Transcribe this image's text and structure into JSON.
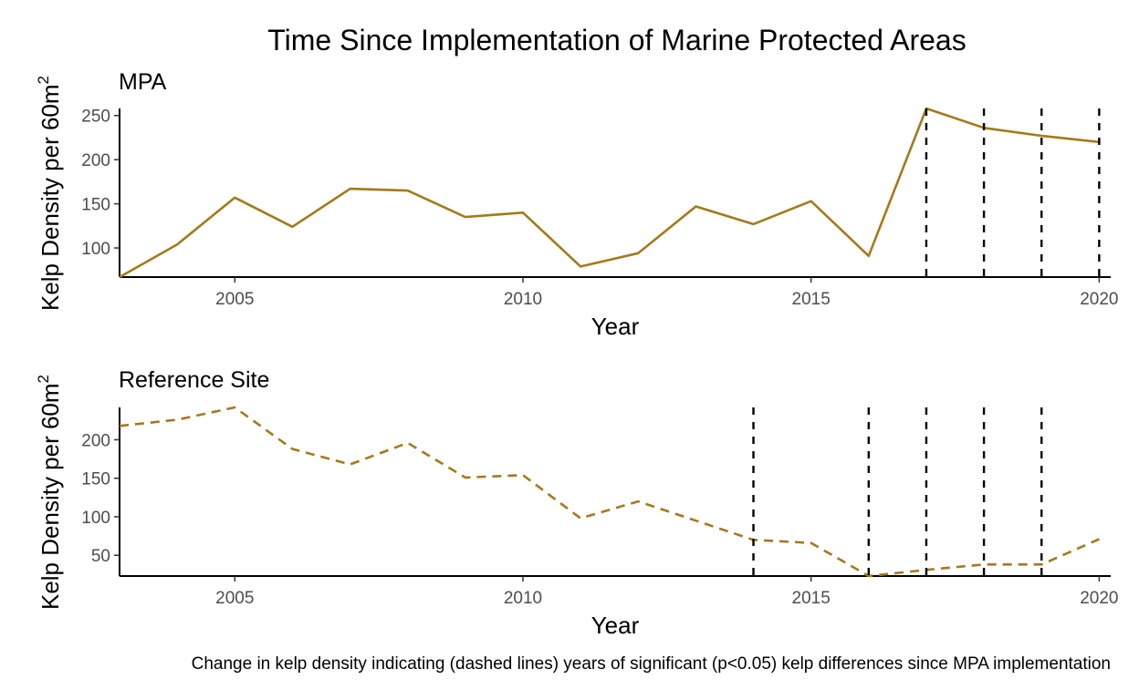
{
  "chart_data": {
    "title": "Time Since Implementation of Marine Protected Areas",
    "caption": "Change in kelp density indicating (dashed lines) years of significant (p<0.05) kelp differences since MPA implementation",
    "colors": {
      "series": "#a47a1a",
      "reference_lines": "#000000",
      "axis": "#000000",
      "tick_text": "#4d4d4d"
    },
    "panels": [
      {
        "type": "line",
        "subtitle": "MPA",
        "xlabel": "Year",
        "ylabel": "Kelp Density per 60m",
        "ylabel_superscript": "2",
        "line_style": "solid",
        "xlim": [
          2003,
          2020.2
        ],
        "ylim": [
          67,
          258
        ],
        "xticks": [
          2005,
          2010,
          2015,
          2020
        ],
        "yticks": [
          100,
          150,
          200,
          250
        ],
        "grid": false,
        "x": [
          2003,
          2004,
          2005,
          2006,
          2007,
          2008,
          2009,
          2010,
          2011,
          2012,
          2013,
          2014,
          2015,
          2016,
          2017,
          2018,
          2019,
          2020
        ],
        "values": [
          67,
          104,
          157,
          124,
          167,
          165,
          135,
          140,
          79,
          94,
          147,
          127,
          153,
          91,
          258,
          236,
          227,
          220
        ],
        "significant_years": [
          2017,
          2018,
          2019,
          2020
        ]
      },
      {
        "type": "line",
        "subtitle": "Reference Site",
        "xlabel": "Year",
        "ylabel": "Kelp Density per 60m",
        "ylabel_superscript": "2",
        "line_style": "dashed",
        "xlim": [
          2003,
          2020.2
        ],
        "ylim": [
          23,
          242
        ],
        "xticks": [
          2005,
          2010,
          2015,
          2020
        ],
        "yticks": [
          50,
          100,
          150,
          200
        ],
        "grid": false,
        "x": [
          2003,
          2004,
          2005,
          2006,
          2007,
          2008,
          2009,
          2010,
          2011,
          2012,
          2013,
          2014,
          2015,
          2016,
          2017,
          2018,
          2019,
          2020
        ],
        "values": [
          218,
          226,
          242,
          188,
          168,
          196,
          151,
          154,
          98,
          120,
          95,
          70,
          66,
          23,
          31,
          38,
          38,
          71
        ],
        "significant_years": [
          2014,
          2016,
          2017,
          2018,
          2019
        ]
      }
    ]
  }
}
